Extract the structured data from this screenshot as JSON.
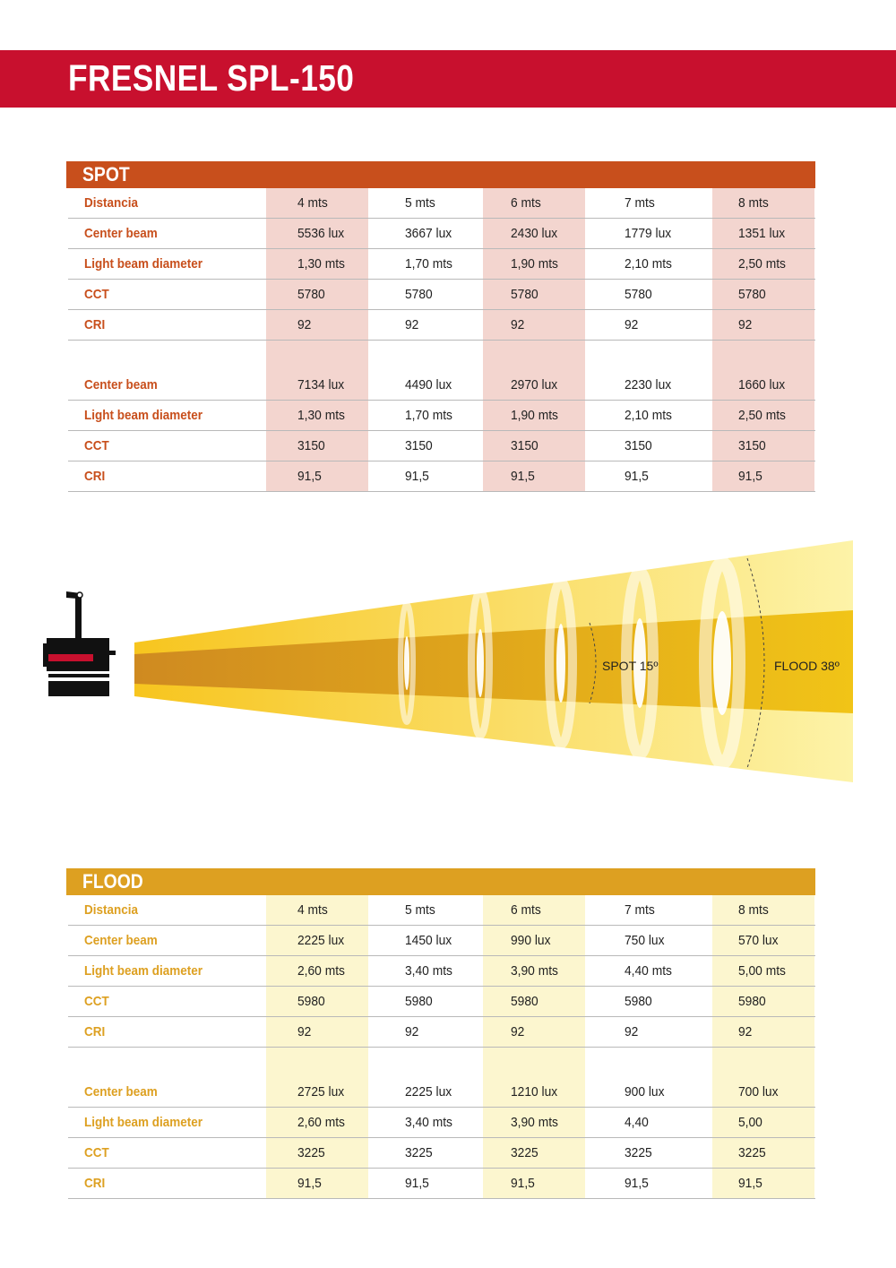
{
  "title": "FRESNEL SPL-150",
  "spot": {
    "header": "SPOT",
    "rows": [
      {
        "label": "Distancia",
        "values": [
          "4 mts",
          "5 mts",
          "6 mts",
          "7 mts",
          "8 mts"
        ]
      },
      {
        "label": "Center beam",
        "values": [
          "5536 lux",
          "3667 lux",
          "2430 lux",
          "1779 lux",
          "1351 lux"
        ]
      },
      {
        "label": "Light beam diameter",
        "values": [
          "1,30 mts",
          "1,70 mts",
          "1,90 mts",
          "2,10 mts",
          "2,50 mts"
        ]
      },
      {
        "label": "CCT",
        "values": [
          "5780",
          "5780",
          "5780",
          "5780",
          "5780"
        ]
      },
      {
        "label": "CRI",
        "values": [
          "92",
          "92",
          "92",
          "92",
          "92"
        ]
      },
      {
        "label": "Center beam",
        "values": [
          "7134 lux",
          "4490 lux",
          "2970 lux",
          "2230 lux",
          "1660 lux"
        ]
      },
      {
        "label": "Light beam diameter",
        "values": [
          "1,30 mts",
          "1,70 mts",
          "1,90 mts",
          "2,10 mts",
          "2,50 mts"
        ]
      },
      {
        "label": "CCT",
        "values": [
          "3150",
          "3150",
          "3150",
          "3150",
          "3150"
        ]
      },
      {
        "label": "CRI",
        "values": [
          "91,5",
          "91,5",
          "91,5",
          "91,5",
          "91,5"
        ]
      }
    ]
  },
  "diagram": {
    "spot_label": "SPOT 15º",
    "flood_label": "FLOOD 38º",
    "colors": {
      "outer_beam": "#fbe76a",
      "inner_beam": "#e8a21a",
      "fixture": "#111111",
      "fixture_accent": "#c8102e"
    },
    "icon": "fresnel-lamp-icon"
  },
  "flood": {
    "header": "FLOOD",
    "rows": [
      {
        "label": "Distancia",
        "values": [
          "4 mts",
          "5 mts",
          "6 mts",
          "7 mts",
          "8 mts"
        ]
      },
      {
        "label": "Center beam",
        "values": [
          "2225 lux",
          "1450 lux",
          "990 lux",
          "750 lux",
          "570 lux"
        ]
      },
      {
        "label": "Light beam diameter",
        "values": [
          "2,60 mts",
          "3,40 mts",
          "3,90 mts",
          "4,40 mts",
          "5,00 mts"
        ]
      },
      {
        "label": "CCT",
        "values": [
          "5980",
          "5980",
          "5980",
          "5980",
          "5980"
        ]
      },
      {
        "label": "CRI",
        "values": [
          "92",
          "92",
          "92",
          "92",
          "92"
        ]
      },
      {
        "label": "Center beam",
        "values": [
          "2725 lux",
          "2225 lux",
          "1210 lux",
          "900 lux",
          "700 lux"
        ]
      },
      {
        "label": "Light beam diameter",
        "values": [
          "2,60 mts",
          "3,40 mts",
          "3,90 mts",
          "4,40",
          "5,00"
        ]
      },
      {
        "label": "CCT",
        "values": [
          "3225",
          "3225",
          "3225",
          "3225",
          "3225"
        ]
      },
      {
        "label": "CRI",
        "values": [
          "91,5",
          "91,5",
          "91,5",
          "91,5",
          "91,5"
        ]
      }
    ]
  },
  "brand_colors": {
    "banner": "#c8102e",
    "spot": "#c84f1c",
    "flood": "#dda021"
  }
}
